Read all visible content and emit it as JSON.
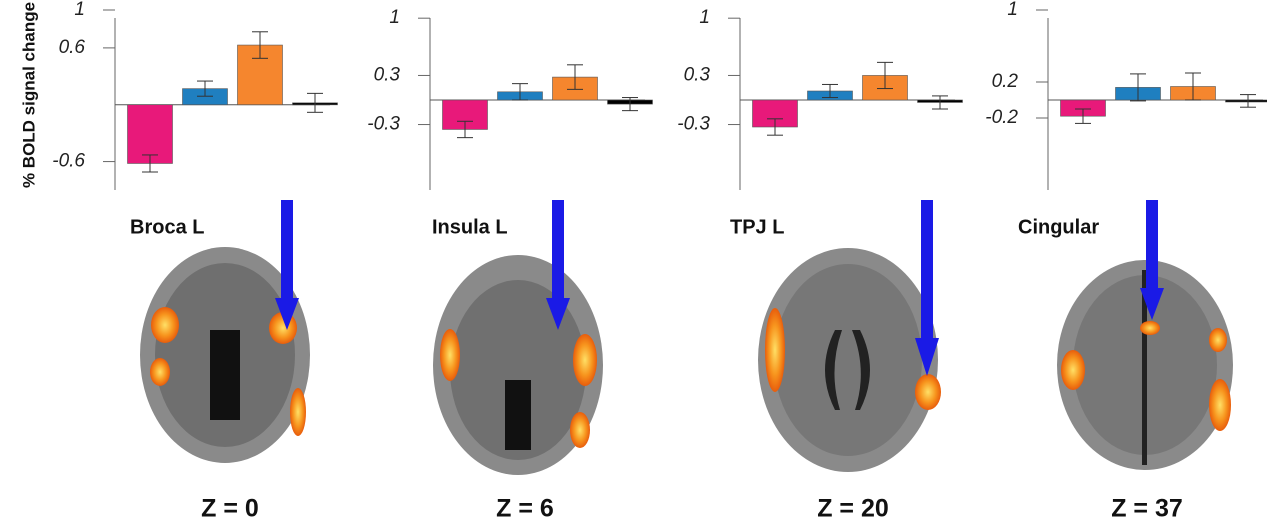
{
  "chart_data": [
    {
      "type": "bar",
      "ylabel": "% BOLD signal change",
      "categories": [
        null,
        null,
        null,
        null
      ],
      "values": [
        -0.62,
        0.17,
        0.63,
        0.02
      ],
      "errors": [
        0.09,
        0.08,
        0.14,
        0.1
      ],
      "colors": [
        "#e8197a",
        "#1f7fc0",
        "#f5862e",
        "#000000"
      ],
      "ylim": [
        -0.9,
        1
      ],
      "yticks": [
        -0.6,
        0.6,
        1
      ]
    },
    {
      "type": "bar",
      "categories": [
        null,
        null,
        null,
        null
      ],
      "values": [
        -0.36,
        0.1,
        0.28,
        -0.05
      ],
      "errors": [
        0.1,
        0.1,
        0.15,
        0.08
      ],
      "colors": [
        "#e8197a",
        "#1f7fc0",
        "#f5862e",
        "#000000"
      ],
      "ylim": [
        -1.1,
        1.1
      ],
      "yticks": [
        -0.3,
        0.3,
        1
      ]
    },
    {
      "type": "bar",
      "categories": [
        null,
        null,
        null,
        null
      ],
      "values": [
        -0.33,
        0.11,
        0.3,
        -0.03
      ],
      "errors": [
        0.1,
        0.08,
        0.16,
        0.08
      ],
      "colors": [
        "#e8197a",
        "#1f7fc0",
        "#f5862e",
        "#000000"
      ],
      "ylim": [
        -1.1,
        1.1
      ],
      "yticks": [
        -0.3,
        0.3,
        1
      ]
    },
    {
      "type": "bar",
      "categories": [
        null,
        null,
        null,
        null
      ],
      "values": [
        -0.18,
        0.14,
        0.15,
        -0.01
      ],
      "errors": [
        0.08,
        0.15,
        0.15,
        0.07
      ],
      "colors": [
        "#e8197a",
        "#1f7fc0",
        "#f5862e",
        "#000000"
      ],
      "ylim": [
        -1.0,
        1.0
      ],
      "yticks": [
        -0.2,
        0.2,
        1
      ]
    }
  ],
  "panels": [
    {
      "region": "Broca L",
      "slice": "Z = 0"
    },
    {
      "region": "Insula L",
      "slice": "Z = 6"
    },
    {
      "region": "TPJ L",
      "slice": "Z = 20"
    },
    {
      "region": "Cingular",
      "slice": "Z = 37"
    }
  ]
}
